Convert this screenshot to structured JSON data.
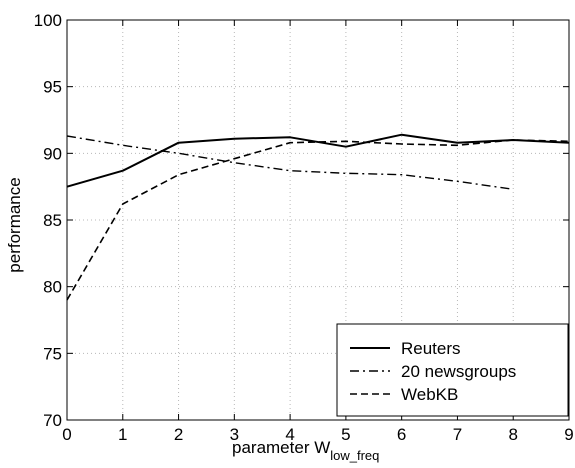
{
  "chart_data": {
    "type": "line",
    "title": "",
    "xlabel": "parameter W",
    "xlabel_sub": "low_freq",
    "ylabel": "performance",
    "xlim": [
      0,
      9
    ],
    "ylim": [
      70,
      100
    ],
    "x_ticks": [
      0,
      1,
      2,
      3,
      4,
      5,
      6,
      7,
      8,
      9
    ],
    "y_ticks": [
      70,
      75,
      80,
      85,
      90,
      95,
      100
    ],
    "grid": true,
    "legend_position": "bottom-right",
    "series": [
      {
        "name": "Reuters",
        "style": "solid",
        "x": [
          0,
          1,
          2,
          3,
          4,
          5,
          6,
          7,
          8,
          9
        ],
        "values": [
          87.5,
          88.7,
          90.8,
          91.1,
          91.2,
          90.5,
          91.4,
          90.8,
          91.0,
          90.8
        ]
      },
      {
        "name": "20 newsgroups",
        "style": "dashdot",
        "x": [
          0,
          1,
          2,
          3,
          4,
          5,
          6,
          7,
          8
        ],
        "values": [
          91.3,
          90.6,
          90.0,
          89.3,
          88.7,
          88.5,
          88.4,
          87.9,
          87.3
        ]
      },
      {
        "name": "WebKB",
        "style": "dashed",
        "x": [
          0,
          1,
          2,
          3,
          4,
          5,
          6,
          7,
          8,
          9
        ],
        "values": [
          79.0,
          86.2,
          88.4,
          89.6,
          90.8,
          90.9,
          90.7,
          90.6,
          91.0,
          90.9
        ]
      }
    ]
  }
}
